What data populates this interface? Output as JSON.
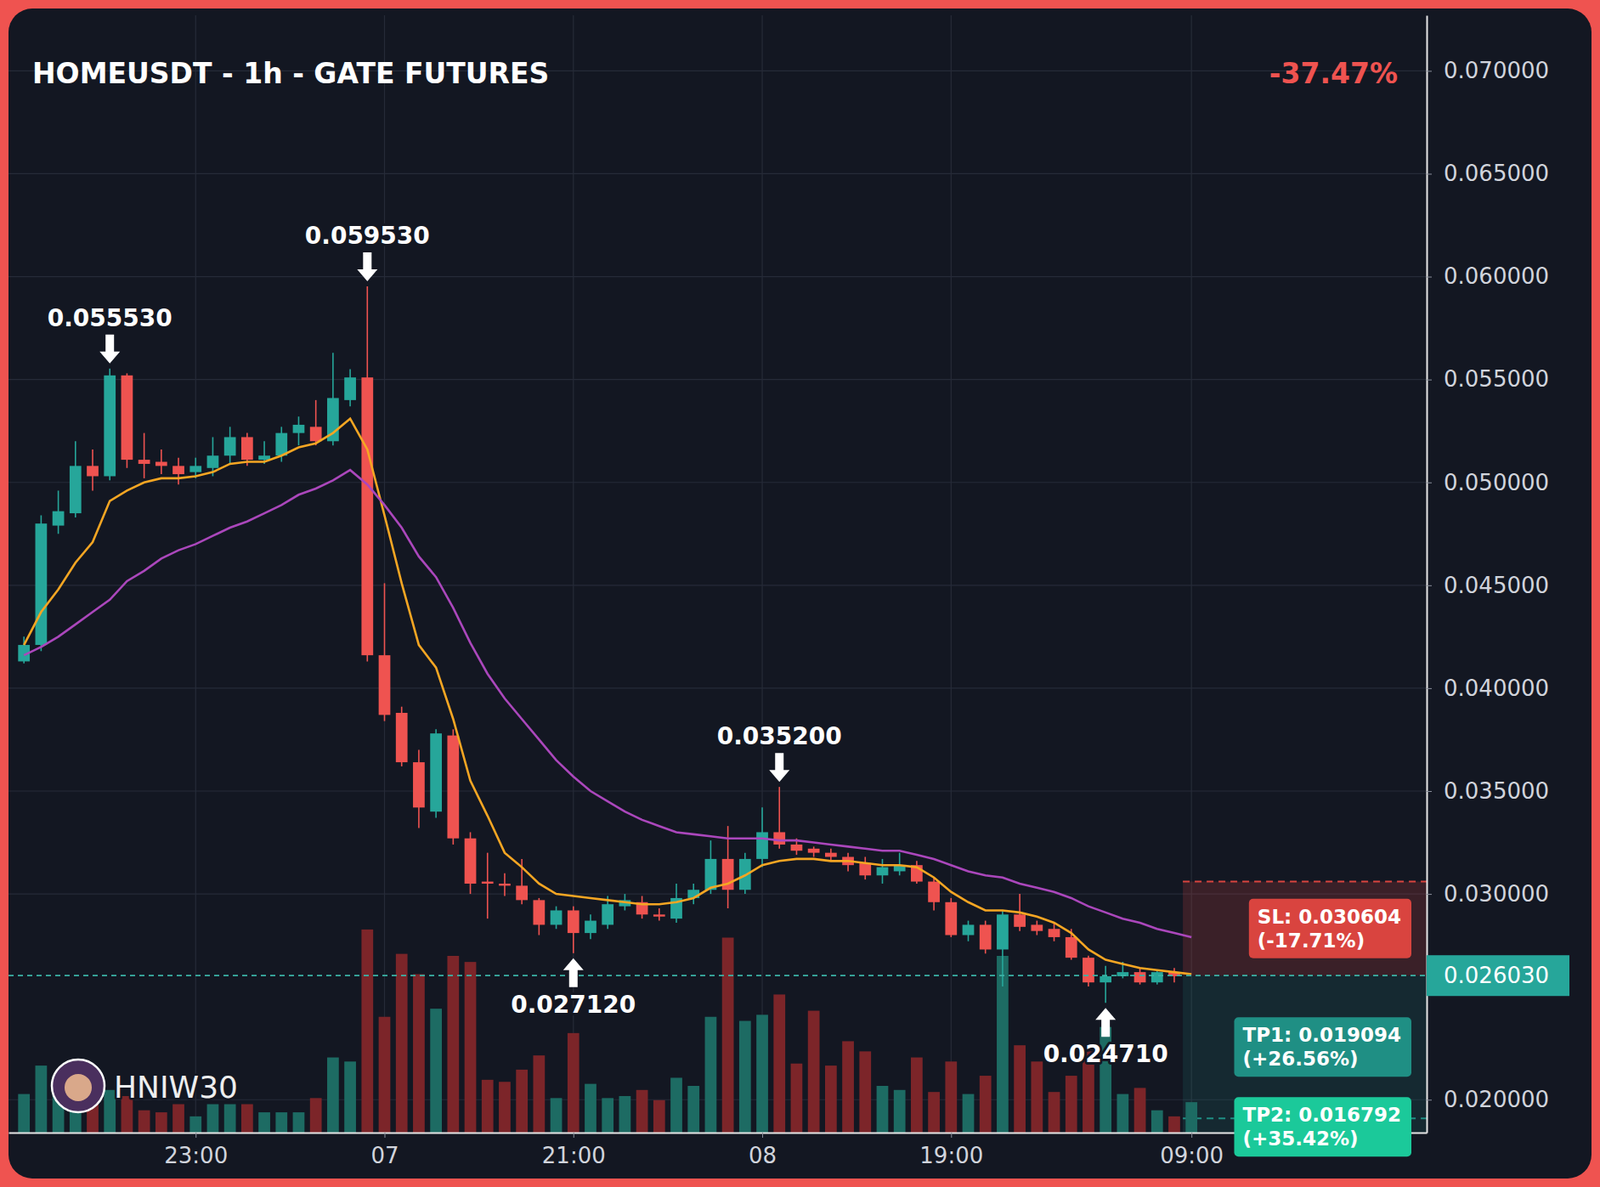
{
  "chart_data": {
    "type": "candlestick",
    "title": "HOMEUSDT - 1h - GATE FUTURES",
    "change": {
      "value": -37.47,
      "label": "-37.47%"
    },
    "categories": [
      null,
      null,
      null,
      null,
      null,
      null,
      null,
      null,
      null,
      null,
      "23:00",
      null,
      null,
      null,
      null,
      null,
      null,
      null,
      null,
      null,
      null,
      "07",
      null,
      null,
      null,
      null,
      null,
      null,
      null,
      null,
      null,
      null,
      "21:00",
      null,
      null,
      null,
      null,
      null,
      null,
      null,
      null,
      null,
      null,
      "08",
      null,
      null,
      null,
      null,
      null,
      null,
      null,
      null,
      null,
      null,
      "19:00",
      null,
      null,
      null,
      null,
      null,
      null,
      null,
      null,
      null,
      null,
      null,
      null,
      null,
      "09:00"
    ],
    "xlim": [
      -0.9,
      81.7
    ],
    "ylim": [
      0.0184,
      0.0727
    ],
    "yticks": [
      {
        "value": 0.02,
        "label": "0.020000"
      },
      {
        "value": 0.03,
        "label": "0.030000"
      },
      {
        "value": 0.035,
        "label": "0.035000"
      },
      {
        "value": 0.04,
        "label": "0.040000"
      },
      {
        "value": 0.045,
        "label": "0.045000"
      },
      {
        "value": 0.05,
        "label": "0.050000"
      },
      {
        "value": 0.055,
        "label": "0.055000"
      },
      {
        "value": 0.06,
        "label": "0.060000"
      },
      {
        "value": 0.065,
        "label": "0.065000"
      },
      {
        "value": 0.07,
        "label": "0.070000"
      }
    ],
    "y2lim": [
      0,
      550
    ],
    "grid": true,
    "series": [
      {
        "type": "candlestick",
        "open": [
          0.0413,
          0.0421,
          0.0479,
          0.0485,
          0.0508,
          0.0503,
          0.0552,
          0.0511,
          0.051,
          0.0508,
          0.0505,
          0.0507,
          0.0513,
          0.0522,
          0.0511,
          0.0513,
          0.0524,
          0.0527,
          0.052,
          0.054,
          0.0551,
          0.0416,
          0.0388,
          0.0364,
          0.034,
          0.0377,
          0.0327,
          0.0306,
          0.0305,
          0.0304,
          0.0297,
          0.0285,
          0.0292,
          0.0281,
          0.0285,
          0.0294,
          0.0296,
          0.029,
          0.0288,
          0.0298,
          0.0302,
          0.0317,
          0.0302,
          0.0317,
          0.033,
          0.0324,
          0.0322,
          0.032,
          0.0318,
          0.0315,
          0.0309,
          0.0311,
          0.0314,
          0.0306,
          0.0296,
          0.028,
          0.0285,
          0.0273,
          0.029,
          0.0285,
          0.0283,
          0.0279,
          0.0269,
          0.0257,
          0.026,
          0.0262,
          0.0257,
          0.0262,
          null
        ],
        "high": [
          0.0425,
          0.0484,
          0.0496,
          0.052,
          0.0516,
          0.05553,
          0.0553,
          0.0524,
          0.0516,
          0.0512,
          0.0512,
          0.0522,
          0.0527,
          0.0524,
          0.052,
          0.0527,
          0.0532,
          0.054,
          0.0563,
          0.0555,
          0.05953,
          0.0451,
          0.0391,
          0.037,
          0.038,
          0.038,
          0.033,
          0.032,
          0.031,
          0.0317,
          0.0298,
          0.0294,
          0.0294,
          0.029,
          0.0299,
          0.03,
          0.0299,
          0.0293,
          0.0305,
          0.0305,
          0.0326,
          0.0333,
          0.032,
          0.0342,
          0.0352,
          0.0327,
          0.0323,
          0.0322,
          0.032,
          0.0318,
          0.0317,
          0.032,
          0.0316,
          0.0308,
          0.0298,
          0.0287,
          0.0287,
          0.0292,
          0.03,
          0.0287,
          0.0286,
          0.0283,
          0.027,
          0.0265,
          0.0267,
          0.0264,
          0.0263,
          0.0264,
          null
        ],
        "low": [
          0.0412,
          0.0418,
          0.0475,
          0.0483,
          0.0496,
          0.0501,
          0.0507,
          0.0502,
          0.0504,
          0.0499,
          0.0502,
          0.0503,
          0.0509,
          0.0508,
          0.0509,
          0.051,
          0.0518,
          0.0518,
          0.0518,
          0.0537,
          0.0413,
          0.0384,
          0.0362,
          0.0332,
          0.0337,
          0.0324,
          0.03,
          0.0288,
          0.0299,
          0.0295,
          0.028,
          0.0283,
          0.02712,
          0.0278,
          0.0283,
          0.0292,
          0.0288,
          0.0287,
          0.0286,
          0.0295,
          0.03,
          0.0293,
          0.03,
          0.0313,
          0.0322,
          0.0319,
          0.0318,
          0.0316,
          0.0311,
          0.0307,
          0.0305,
          0.0309,
          0.0305,
          0.0292,
          0.0279,
          0.0277,
          0.0271,
          0.0255,
          0.0282,
          0.028,
          0.0277,
          0.0268,
          0.0255,
          0.02471,
          0.0259,
          0.0256,
          0.0256,
          0.0257,
          null
        ],
        "close": [
          0.0421,
          0.048,
          0.0486,
          0.0508,
          0.0503,
          0.0552,
          0.0511,
          0.0509,
          0.0508,
          0.0504,
          0.0508,
          0.0513,
          0.0522,
          0.0511,
          0.0513,
          0.0524,
          0.0528,
          0.052,
          0.0541,
          0.0551,
          0.0416,
          0.0387,
          0.0364,
          0.0342,
          0.0378,
          0.0327,
          0.0305,
          0.0305,
          0.0304,
          0.0297,
          0.0285,
          0.0292,
          0.0281,
          0.0287,
          0.0295,
          0.0297,
          0.029,
          0.0289,
          0.0298,
          0.0302,
          0.0317,
          0.0302,
          0.0317,
          0.033,
          0.0324,
          0.0321,
          0.032,
          0.0318,
          0.0314,
          0.0309,
          0.0313,
          0.0314,
          0.0306,
          0.0296,
          0.028,
          0.0285,
          0.0273,
          0.029,
          0.0284,
          0.0282,
          0.0279,
          0.0269,
          0.0257,
          0.026,
          0.0262,
          0.0257,
          0.0262,
          0.026,
          null
        ]
      },
      {
        "type": "bar",
        "axis": "y2",
        "values": [
          19,
          33,
          28,
          30,
          16,
          21,
          18,
          11,
          10,
          14,
          8,
          14,
          14,
          14,
          10,
          10,
          10,
          17,
          37,
          35,
          100,
          57,
          88,
          78,
          61,
          87,
          84,
          26,
          25,
          31,
          38,
          17,
          49,
          24,
          17,
          18,
          21,
          16,
          27,
          23,
          57,
          96,
          55,
          58,
          68,
          34,
          60,
          33,
          45,
          40,
          23,
          21,
          37,
          20,
          35,
          19,
          28,
          87,
          43,
          35,
          20,
          28,
          40,
          52,
          19,
          22,
          11,
          8,
          15
        ]
      },
      {
        "type": "line",
        "color": "#f5a623",
        "values": [
          0.0421,
          0.0437,
          0.0448,
          0.0461,
          0.0471,
          0.0491,
          0.0496,
          0.05,
          0.0502,
          0.0502,
          0.0503,
          0.0505,
          0.0509,
          0.051,
          0.051,
          0.0513,
          0.0517,
          0.0519,
          0.0524,
          0.0531,
          0.0516,
          0.0484,
          0.0451,
          0.0421,
          0.041,
          0.0385,
          0.0355,
          0.0338,
          0.032,
          0.0313,
          0.0305,
          0.03,
          0.0299,
          0.0298,
          0.0297,
          0.0296,
          0.0295,
          0.0295,
          0.0296,
          0.0298,
          0.0303,
          0.0305,
          0.0309,
          0.0314,
          0.0316,
          0.0317,
          0.0317,
          0.0316,
          0.0316,
          0.0315,
          0.0314,
          0.0314,
          0.0313,
          0.0308,
          0.0301,
          0.0296,
          0.0292,
          0.0292,
          0.0291,
          0.0289,
          0.0286,
          0.0281,
          0.0273,
          0.0268,
          0.0266,
          0.0264,
          0.0263,
          0.0262,
          0.0261
        ]
      },
      {
        "type": "line",
        "color": "#ab47bc",
        "values": [
          0.0416,
          0.042,
          0.0425,
          0.0431,
          0.0437,
          0.0443,
          0.0452,
          0.0457,
          0.0463,
          0.0467,
          0.047,
          0.0474,
          0.0478,
          0.0481,
          0.0485,
          0.0489,
          0.0494,
          0.0497,
          0.0501,
          0.0506,
          0.0499,
          0.0489,
          0.0478,
          0.0464,
          0.0454,
          0.0439,
          0.0422,
          0.0407,
          0.0395,
          0.0385,
          0.0375,
          0.0365,
          0.0357,
          0.035,
          0.0345,
          0.034,
          0.0336,
          0.0333,
          0.033,
          0.0329,
          0.0328,
          0.0327,
          0.0327,
          0.0327,
          0.0326,
          0.0326,
          0.0325,
          0.0324,
          0.0323,
          0.0322,
          0.0321,
          0.0321,
          0.0319,
          0.0317,
          0.0314,
          0.0311,
          0.0309,
          0.0308,
          0.0305,
          0.0303,
          0.0301,
          0.0298,
          0.0294,
          0.0291,
          0.0288,
          0.0286,
          0.0283,
          0.0281,
          0.0279
        ]
      }
    ],
    "annotations": [
      {
        "text": "0.055530",
        "index": 5,
        "value": 0.05553
      },
      {
        "text": "0.059530",
        "index": 20,
        "value": 0.05953
      },
      {
        "text": "0.027120",
        "index": 32,
        "value": 0.02712
      },
      {
        "text": "0.035200",
        "index": 44,
        "value": 0.0352
      },
      {
        "text": "0.024710",
        "index": 63,
        "value": 0.02471
      }
    ],
    "last_price": {
      "value": 0.02603,
      "label": "0.026030"
    },
    "levels": [
      {
        "text": "SL: 0.030604",
        "value": 0.030604,
        "change_text": "(-17.71%)",
        "color": "#d9443f"
      },
      {
        "text": "TP1: 0.019094",
        "value": 0.019094,
        "change_text": "(+26.56%)",
        "color": "#1f8f84"
      },
      {
        "text": "TP2: 0.016792",
        "value": 0.016792,
        "change_text": "(+35.42%)",
        "color": "#1bc99a"
      }
    ],
    "watermark": "HNIW30"
  }
}
